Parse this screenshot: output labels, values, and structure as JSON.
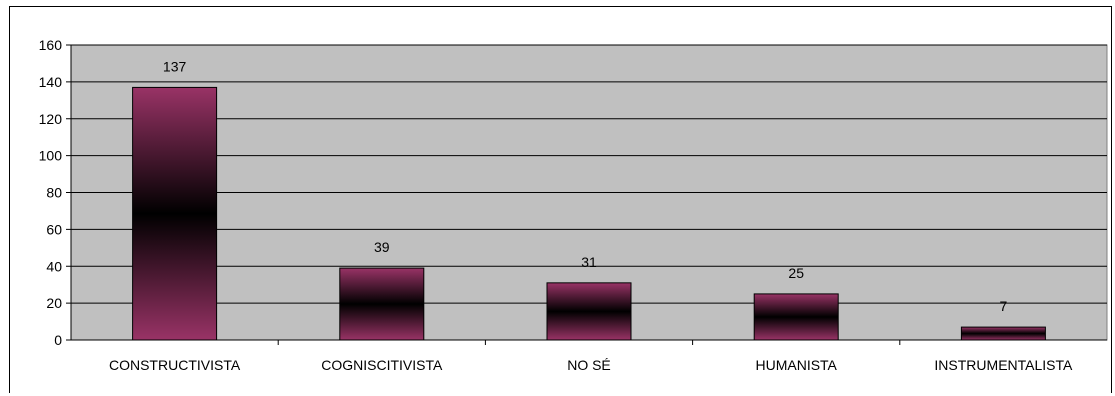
{
  "chart_data": {
    "type": "bar",
    "categories": [
      "CONSTRUCTIVISTA",
      "COGNISCITIVISTA",
      "NO SÉ",
      "HUMANISTA",
      "INSTRUMENTALISTA"
    ],
    "values": [
      137,
      39,
      31,
      25,
      7
    ],
    "data_labels": [
      "137",
      "39",
      "31",
      "25",
      "7"
    ],
    "y_ticks": [
      "0",
      "20",
      "40",
      "60",
      "80",
      "100",
      "120",
      "140",
      "160"
    ],
    "ylim": [
      0,
      160
    ],
    "grid": true,
    "legend": "none",
    "colors": {
      "plot_bg": "#c0c0c0",
      "bar_edge": "#993366",
      "bar_center": "#000000",
      "grid": "#000000"
    }
  }
}
